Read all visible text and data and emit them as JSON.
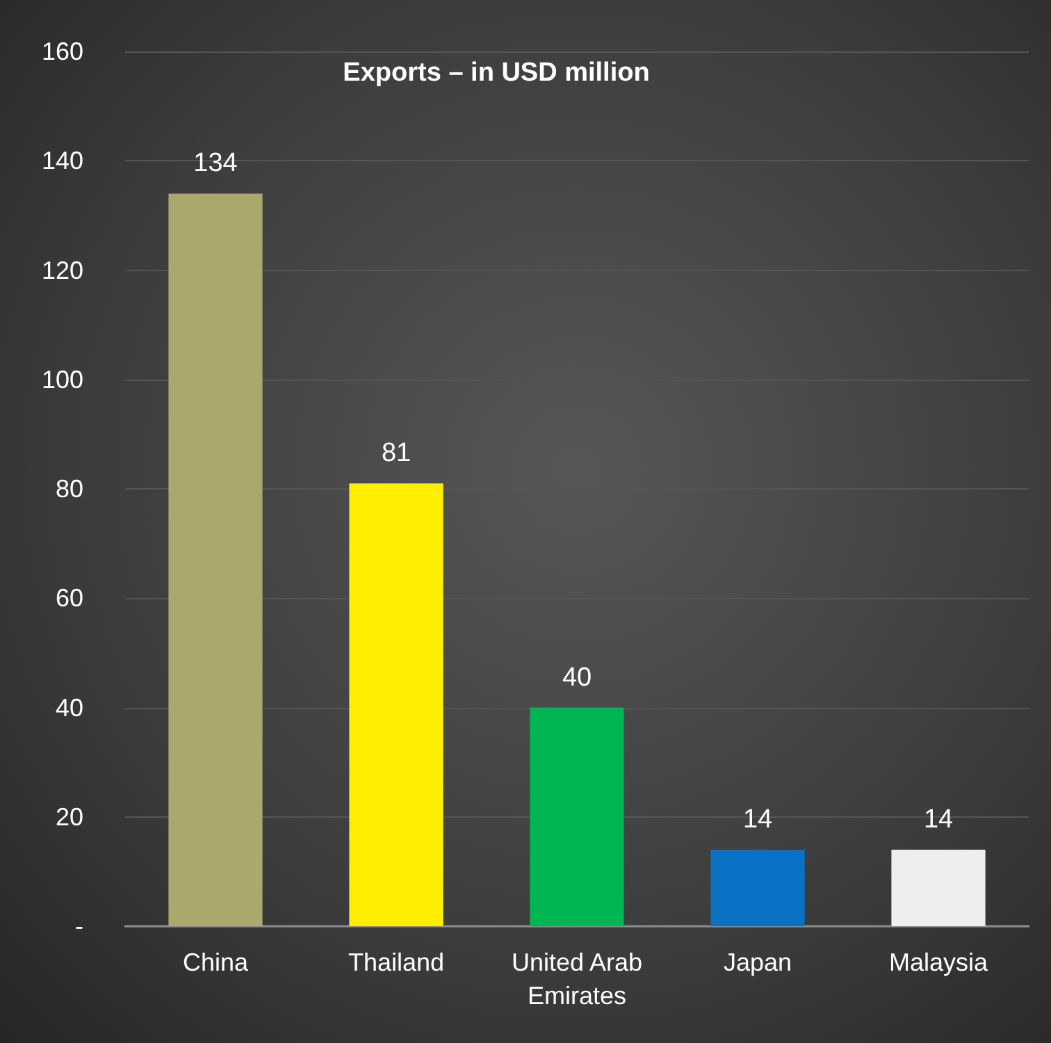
{
  "chart_data": {
    "type": "bar",
    "title": "Exports – in USD million",
    "categories": [
      "China",
      "Thailand",
      "United Arab Emirates",
      "Japan",
      "Malaysia"
    ],
    "values": [
      134,
      81,
      40,
      14,
      14
    ],
    "colors": [
      "#aaa86c",
      "#ffee00",
      "#00b652",
      "#0a72c4",
      "#eeeeee"
    ],
    "data_labels": true,
    "ylim": [
      0,
      160
    ],
    "yticks": [
      {
        "value": 0,
        "label": "-"
      },
      20,
      40,
      60,
      80,
      100,
      120,
      140,
      160
    ],
    "grid": "y"
  }
}
